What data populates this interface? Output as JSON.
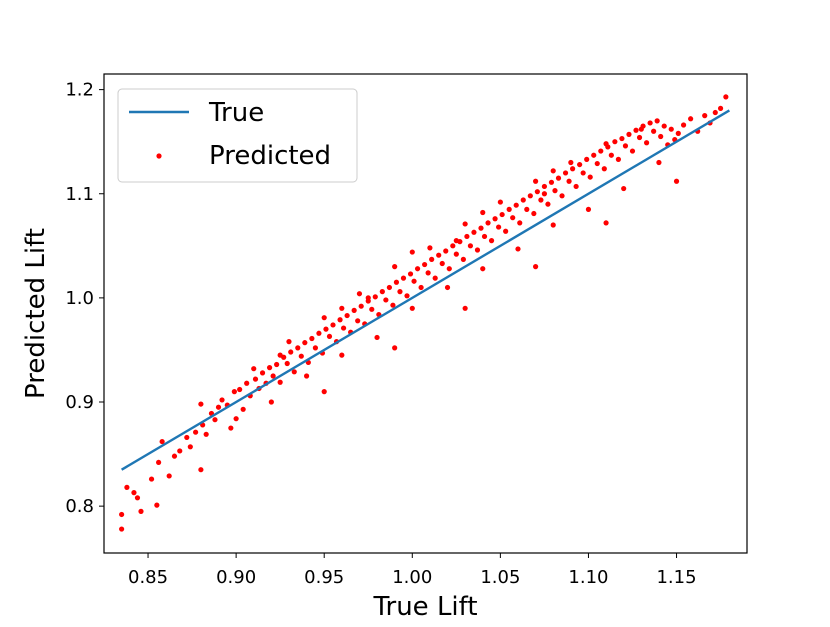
{
  "chart_data": {
    "type": "scatter",
    "title": "",
    "xlabel": "True Lift",
    "ylabel": "Predicted Lift",
    "xlim": [
      0.825,
      1.19
    ],
    "ylim": [
      0.755,
      1.215
    ],
    "xticks": [
      0.85,
      0.9,
      0.95,
      1.0,
      1.05,
      1.1,
      1.15
    ],
    "xtick_labels": [
      "0.85",
      "0.90",
      "0.95",
      "1.00",
      "1.05",
      "1.10",
      "1.15"
    ],
    "yticks": [
      0.8,
      0.9,
      1.0,
      1.1,
      1.2
    ],
    "ytick_labels": [
      "0.8",
      "0.9",
      "1.0",
      "1.1",
      "1.2"
    ],
    "grid": false,
    "legend": {
      "position": "upper-left",
      "entries": [
        "True",
        "Predicted"
      ]
    },
    "series": [
      {
        "name": "True",
        "kind": "line",
        "color": "#1f77b4",
        "points": [
          [
            0.835,
            0.835
          ],
          [
            1.18,
            1.18
          ]
        ]
      },
      {
        "name": "Predicted",
        "kind": "scatter",
        "color": "#ff0000",
        "points": [
          [
            0.835,
            0.778
          ],
          [
            0.835,
            0.792
          ],
          [
            0.838,
            0.818
          ],
          [
            0.842,
            0.813
          ],
          [
            0.844,
            0.808
          ],
          [
            0.846,
            0.795
          ],
          [
            0.852,
            0.826
          ],
          [
            0.855,
            0.801
          ],
          [
            0.856,
            0.842
          ],
          [
            0.858,
            0.862
          ],
          [
            0.862,
            0.829
          ],
          [
            0.865,
            0.848
          ],
          [
            0.868,
            0.853
          ],
          [
            0.872,
            0.866
          ],
          [
            0.874,
            0.857
          ],
          [
            0.877,
            0.871
          ],
          [
            0.88,
            0.835
          ],
          [
            0.881,
            0.878
          ],
          [
            0.883,
            0.869
          ],
          [
            0.886,
            0.889
          ],
          [
            0.888,
            0.883
          ],
          [
            0.89,
            0.895
          ],
          [
            0.892,
            0.902
          ],
          [
            0.895,
            0.897
          ],
          [
            0.897,
            0.875
          ],
          [
            0.899,
            0.91
          ],
          [
            0.902,
            0.912
          ],
          [
            0.904,
            0.893
          ],
          [
            0.906,
            0.918
          ],
          [
            0.908,
            0.906
          ],
          [
            0.911,
            0.922
          ],
          [
            0.913,
            0.913
          ],
          [
            0.915,
            0.928
          ],
          [
            0.917,
            0.918
          ],
          [
            0.919,
            0.933
          ],
          [
            0.921,
            0.925
          ],
          [
            0.923,
            0.936
          ],
          [
            0.925,
            0.919
          ],
          [
            0.927,
            0.943
          ],
          [
            0.929,
            0.937
          ],
          [
            0.931,
            0.948
          ],
          [
            0.933,
            0.929
          ],
          [
            0.935,
            0.952
          ],
          [
            0.937,
            0.944
          ],
          [
            0.939,
            0.957
          ],
          [
            0.941,
            0.938
          ],
          [
            0.943,
            0.961
          ],
          [
            0.945,
            0.952
          ],
          [
            0.947,
            0.966
          ],
          [
            0.949,
            0.947
          ],
          [
            0.951,
            0.97
          ],
          [
            0.953,
            0.963
          ],
          [
            0.955,
            0.974
          ],
          [
            0.957,
            0.958
          ],
          [
            0.959,
            0.979
          ],
          [
            0.961,
            0.971
          ],
          [
            0.963,
            0.983
          ],
          [
            0.965,
            0.967
          ],
          [
            0.967,
            0.988
          ],
          [
            0.969,
            0.978
          ],
          [
            0.971,
            0.992
          ],
          [
            0.973,
            0.975
          ],
          [
            0.975,
            0.997
          ],
          [
            0.977,
            0.989
          ],
          [
            0.979,
            1.001
          ],
          [
            0.981,
            0.984
          ],
          [
            0.983,
            1.006
          ],
          [
            0.985,
            0.998
          ],
          [
            0.987,
            1.01
          ],
          [
            0.989,
            0.993
          ],
          [
            0.991,
            1.015
          ],
          [
            0.993,
            1.006
          ],
          [
            0.995,
            1.019
          ],
          [
            0.997,
            1.002
          ],
          [
            0.999,
            1.023
          ],
          [
            1.001,
            1.016
          ],
          [
            1.003,
            1.028
          ],
          [
            1.005,
            1.01
          ],
          [
            1.007,
            1.032
          ],
          [
            1.009,
            1.024
          ],
          [
            1.011,
            1.037
          ],
          [
            1.013,
            1.019
          ],
          [
            1.015,
            1.041
          ],
          [
            1.017,
            1.033
          ],
          [
            1.019,
            1.045
          ],
          [
            1.021,
            1.028
          ],
          [
            1.023,
            1.05
          ],
          [
            1.025,
            1.042
          ],
          [
            1.027,
            1.054
          ],
          [
            1.029,
            1.037
          ],
          [
            1.031,
            1.059
          ],
          [
            1.033,
            1.05
          ],
          [
            1.035,
            1.063
          ],
          [
            1.037,
            1.046
          ],
          [
            1.039,
            1.067
          ],
          [
            1.041,
            1.059
          ],
          [
            1.043,
            1.072
          ],
          [
            1.045,
            1.055
          ],
          [
            1.047,
            1.076
          ],
          [
            1.049,
            1.068
          ],
          [
            1.051,
            1.08
          ],
          [
            1.053,
            1.064
          ],
          [
            1.055,
            1.085
          ],
          [
            1.057,
            1.077
          ],
          [
            1.059,
            1.089
          ],
          [
            1.061,
            1.072
          ],
          [
            1.063,
            1.094
          ],
          [
            1.065,
            1.085
          ],
          [
            1.067,
            1.098
          ],
          [
            1.069,
            1.081
          ],
          [
            1.071,
            1.102
          ],
          [
            1.073,
            1.094
          ],
          [
            1.075,
            1.107
          ],
          [
            1.077,
            1.09
          ],
          [
            1.079,
            1.111
          ],
          [
            1.081,
            1.103
          ],
          [
            1.083,
            1.115
          ],
          [
            1.085,
            1.098
          ],
          [
            1.087,
            1.12
          ],
          [
            1.089,
            1.112
          ],
          [
            1.091,
            1.124
          ],
          [
            1.093,
            1.107
          ],
          [
            1.095,
            1.128
          ],
          [
            1.097,
            1.12
          ],
          [
            1.099,
            1.133
          ],
          [
            1.101,
            1.116
          ],
          [
            1.103,
            1.137
          ],
          [
            1.105,
            1.129
          ],
          [
            1.107,
            1.141
          ],
          [
            1.109,
            1.124
          ],
          [
            1.111,
            1.145
          ],
          [
            1.113,
            1.137
          ],
          [
            1.115,
            1.15
          ],
          [
            1.117,
            1.133
          ],
          [
            1.119,
            1.153
          ],
          [
            1.121,
            1.146
          ],
          [
            1.123,
            1.157
          ],
          [
            1.125,
            1.141
          ],
          [
            1.127,
            1.161
          ],
          [
            1.129,
            1.154
          ],
          [
            1.131,
            1.165
          ],
          [
            1.133,
            1.149
          ],
          [
            1.135,
            1.168
          ],
          [
            1.137,
            1.16
          ],
          [
            1.139,
            1.17
          ],
          [
            1.141,
            1.155
          ],
          [
            1.143,
            1.165
          ],
          [
            1.145,
            1.147
          ],
          [
            1.147,
            1.162
          ],
          [
            1.149,
            1.152
          ],
          [
            1.151,
            1.158
          ],
          [
            1.154,
            1.166
          ],
          [
            1.158,
            1.172
          ],
          [
            1.162,
            1.16
          ],
          [
            1.166,
            1.175
          ],
          [
            1.169,
            1.168
          ],
          [
            1.172,
            1.178
          ],
          [
            1.175,
            1.182
          ],
          [
            1.178,
            1.193
          ],
          [
            0.9,
            0.884
          ],
          [
            0.92,
            0.9
          ],
          [
            0.94,
            0.925
          ],
          [
            0.96,
            0.945
          ],
          [
            0.98,
            0.962
          ],
          [
            1.0,
            0.99
          ],
          [
            1.02,
            1.01
          ],
          [
            1.04,
            1.028
          ],
          [
            1.06,
            1.047
          ],
          [
            1.08,
            1.07
          ],
          [
            1.1,
            1.085
          ],
          [
            1.12,
            1.105
          ],
          [
            1.14,
            1.13
          ],
          [
            0.93,
            0.958
          ],
          [
            0.95,
            0.981
          ],
          [
            0.97,
            1.004
          ],
          [
            0.99,
            1.03
          ],
          [
            1.01,
            1.048
          ],
          [
            1.03,
            1.071
          ],
          [
            1.05,
            1.092
          ],
          [
            1.07,
            1.112
          ],
          [
            1.09,
            1.13
          ],
          [
            1.11,
            1.148
          ],
          [
            1.13,
            1.162
          ],
          [
            0.88,
            0.898
          ],
          [
            0.91,
            0.932
          ],
          [
            0.96,
            0.99
          ],
          [
            1.0,
            1.044
          ],
          [
            1.04,
            1.082
          ],
          [
            1.08,
            1.122
          ],
          [
            0.95,
            0.91
          ],
          [
            0.99,
            0.952
          ],
          [
            1.03,
            0.99
          ],
          [
            1.07,
            1.03
          ],
          [
            1.11,
            1.072
          ],
          [
            1.15,
            1.112
          ],
          [
            0.925,
            0.945
          ],
          [
            0.975,
            1.0
          ],
          [
            1.025,
            1.055
          ],
          [
            1.075,
            1.1
          ]
        ]
      }
    ]
  }
}
